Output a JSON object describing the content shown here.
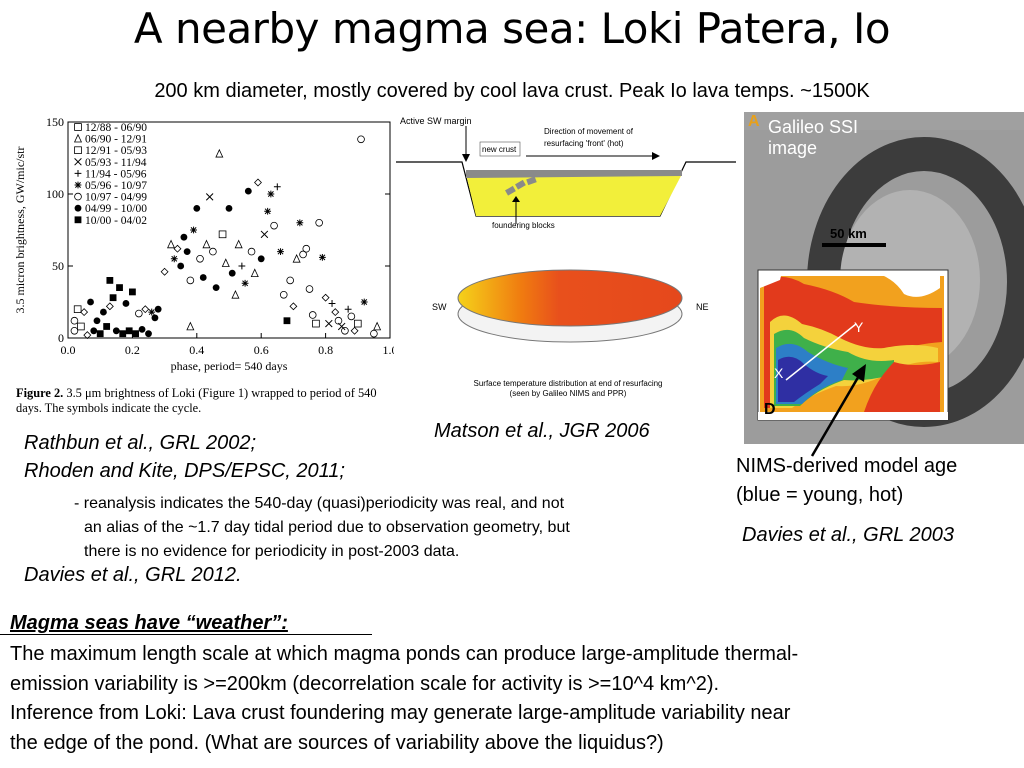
{
  "title": "A nearby magma sea: Loki Patera, Io",
  "subtitle": "200 km diameter, mostly covered by cool lava crust. Peak Io lava temps. ~1500K",
  "scatter": {
    "ylabel": "3.5 micron brightness, GW/mic/str",
    "xlabel": "phase, period= 540 days",
    "yticks": [
      "0",
      "50",
      "100",
      "150"
    ],
    "xticks": [
      "0.0",
      "0.2",
      "0.4",
      "0.6",
      "0.8",
      "1.0"
    ],
    "legend": [
      {
        "symbol": "square-open",
        "label": "12/88 - 06/90"
      },
      {
        "symbol": "triangle-open",
        "label": "06/90 - 12/91"
      },
      {
        "symbol": "square-open",
        "label": "12/91 - 05/93"
      },
      {
        "symbol": "cross-x",
        "label": "05/93 - 11/94"
      },
      {
        "symbol": "plus",
        "label": "11/94 - 05/96"
      },
      {
        "symbol": "asterisk",
        "label": "05/96 - 10/97"
      },
      {
        "symbol": "circle-open",
        "label": "10/97 - 04/99"
      },
      {
        "symbol": "circle-filled",
        "label": "04/99 - 10/00"
      },
      {
        "symbol": "square-filled",
        "label": "10/00 - 04/02"
      }
    ]
  },
  "fig2": {
    "label": "Figure 2.",
    "text": "3.5 μm brightness of Loki (Figure 1) wrapped to period of 540 days. The symbols indicate the cycle."
  },
  "matson": {
    "active_margin": "Active SW margin",
    "new_crust": "new crust",
    "direction": "Direction of movement of",
    "direction2": "resurfacing 'front' (hot)",
    "foundering": "foundering blocks",
    "sw": "SW",
    "ne": "NE",
    "surf1": "Surface temperature distribution at end of resurfacing",
    "surf2": "(seen by Galileo NIMS and PPR)",
    "citation": "Matson et al., JGR 2006"
  },
  "galileo": {
    "panel_a": "A",
    "label1": "Galileo SSI",
    "label2": "image",
    "scalebar": "50 km",
    "panel_d": "D",
    "x_label": "X",
    "y_label": "Y"
  },
  "citations": {
    "rathbun": "Rathbun et al., GRL 2002;",
    "rhoden": "Rhoden and Kite, DPS/EPSC, 2011;",
    "reanalysis1": "- reanalysis indicates the 540-day (quasi)periodicity was real, and not",
    "reanalysis2": "an alias of the ~1.7 day tidal period due to observation geometry, but",
    "reanalysis3": "there is no evidence for periodicity in post-2003 data.",
    "davies2012": "Davies et al., GRL 2012."
  },
  "nims": {
    "line1": "NIMS-derived model age",
    "line2": "(blue = young, hot)",
    "citation": "Davies et al., GRL 2003"
  },
  "weather": {
    "heading": "Magma seas have “weather”:",
    "line1": "The maximum length scale at which magma ponds can produce large-amplitude thermal-",
    "line2": "emission variability is >=200km (decorrelation scale for activity is >=10^4 km^2).",
    "line3": "Inference from Loki: Lava crust foundering may generate large-amplitude variability near",
    "line4": "the edge of the pond. (What are sources of variability above the liquidus?)"
  }
}
